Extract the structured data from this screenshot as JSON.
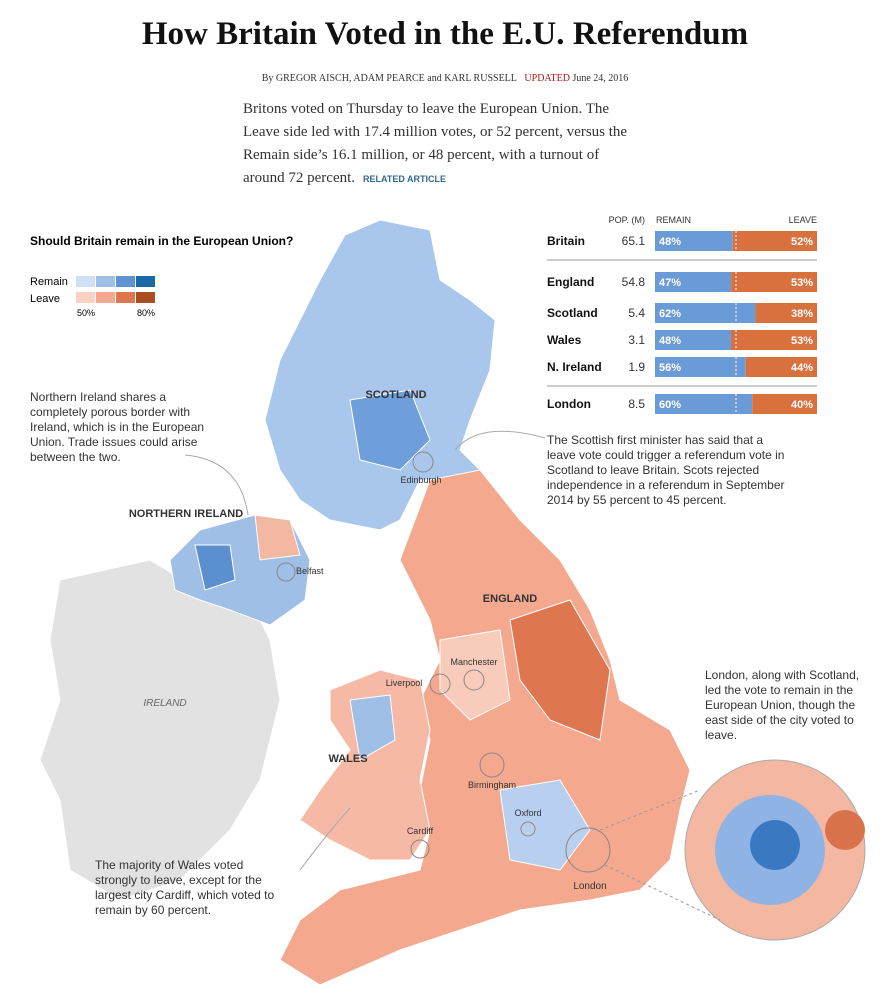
{
  "header": {
    "title": "How Britain Voted in the E.U. Referendum",
    "byline": "By GREGOR AISCH, ADAM PEARCE and KARL RUSSELL",
    "updated": "UPDATED",
    "date": "June 24, 2016",
    "intro": "Britons voted on Thursday to leave the European Union. The Leave side led with 17.4 million votes, or 52 percent, versus the Remain side’s 16.1 million, or 48 percent, with a turnout of around 72 percent.",
    "related": "RELATED ARTICLE"
  },
  "legend": {
    "title": "Should Britain remain in the European Union?",
    "remain": "Remain",
    "leave": "Leave",
    "low": "50%",
    "high": "80%"
  },
  "table": {
    "columns": [
      "POP. (M)",
      "REMAIN",
      "LEAVE"
    ],
    "rows": [
      {
        "name": "Britain",
        "pop": 65.1,
        "remain": 48,
        "leave": 52,
        "remain_label": "48%",
        "leave_label": "52%"
      },
      {
        "name": "England",
        "pop": 54.8,
        "remain": 47,
        "leave": 53,
        "remain_label": "47%",
        "leave_label": "53%"
      },
      {
        "name": "Scotland",
        "pop": 5.4,
        "remain": 62,
        "leave": 38,
        "remain_label": "62%",
        "leave_label": "38%"
      },
      {
        "name": "Wales",
        "pop": 3.1,
        "remain": 48,
        "leave": 53,
        "remain_label": "48%",
        "leave_label": "53%"
      },
      {
        "name": "N. Ireland",
        "pop": 1.9,
        "remain": 56,
        "leave": 44,
        "remain_label": "56%",
        "leave_label": "44%"
      },
      {
        "name": "London",
        "pop": 8.5,
        "remain": 60,
        "leave": 40,
        "remain_label": "60%",
        "leave_label": "40%"
      }
    ]
  },
  "map": {
    "regions": [
      "SCOTLAND",
      "NORTHERN IRELAND",
      "ENGLAND",
      "WALES",
      "IRELAND"
    ],
    "cities": [
      "Edinburgh",
      "Belfast",
      "Manchester",
      "Liverpool",
      "Birmingham",
      "Oxford",
      "Cardiff",
      "London"
    ]
  },
  "annotations": [
    "Northern Ireland shares a completely porous border with Ireland, which is in the European Union. Trade issues could arise between the two.",
    "The Scottish first minister has said that a leave vote could trigger a referendum vote in Scotland to leave Britain. Scots rejected independence in a referendum in September 2014 by 55 percent to 45 percent.",
    "London, along with Scotland, led the vote to remain in the European Union, though the east side of the city voted to leave.",
    "The majority of Wales voted strongly to leave, except for the largest city Cardiff, which voted to remain by 60 percent."
  ]
}
